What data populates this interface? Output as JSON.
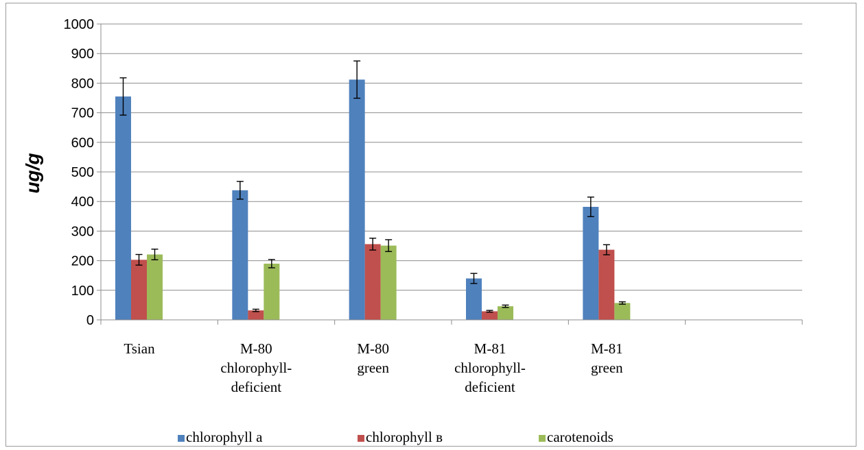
{
  "chart_data": {
    "type": "bar",
    "ylabel": "ug/g",
    "ylim": [
      0,
      1000
    ],
    "ytick_step": 100,
    "grid": true,
    "legend_position": "bottom",
    "categories": [
      [
        "Tsian"
      ],
      [
        "M-80",
        "chlorophyll-",
        "deficient"
      ],
      [
        "M-80",
        "green"
      ],
      [
        "M-81",
        "chlorophyll-",
        "deficient"
      ],
      [
        "M-81",
        "green"
      ]
    ],
    "series": [
      {
        "name": "chlorophyll a",
        "color": "#4F81BD",
        "values": [
          755,
          438,
          812,
          140,
          382
        ],
        "errors": [
          63,
          30,
          63,
          17,
          33
        ]
      },
      {
        "name": "chlorophyll в",
        "color": "#C0504D",
        "values": [
          203,
          32,
          256,
          29,
          237
        ],
        "errors": [
          18,
          4,
          20,
          3,
          17
        ]
      },
      {
        "name": "carotenoids",
        "color": "#9BBB59",
        "values": [
          221,
          190,
          251,
          46,
          57
        ],
        "errors": [
          18,
          14,
          20,
          4,
          4
        ]
      }
    ]
  }
}
